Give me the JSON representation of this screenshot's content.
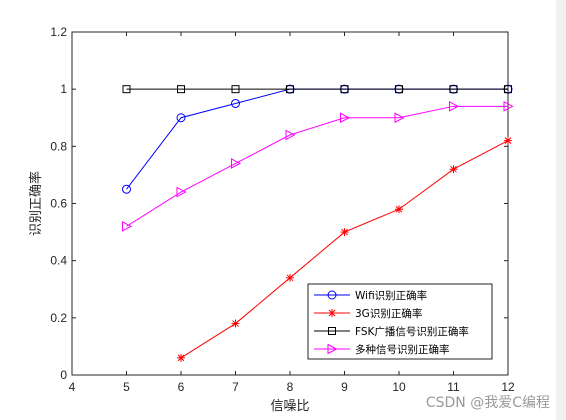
{
  "chart_data": {
    "type": "line",
    "xlabel": "信噪比",
    "ylabel": "识别正确率",
    "xlim": [
      4,
      12
    ],
    "ylim": [
      0,
      1.2
    ],
    "x_ticks": [
      "4",
      "5",
      "6",
      "7",
      "8",
      "9",
      "10",
      "11",
      "12"
    ],
    "y_ticks": [
      "0",
      "0.2",
      "0.4",
      "0.6",
      "0.8",
      "1",
      "1.2"
    ],
    "grid": false,
    "legend_position": "bottom-right",
    "series": [
      {
        "name": "Wifi识别正确率",
        "color": "#0000ff",
        "marker": "circle",
        "x": [
          5,
          6,
          7,
          8,
          9,
          10,
          11,
          12
        ],
        "y": [
          0.65,
          0.9,
          0.95,
          1,
          1,
          1,
          1,
          1
        ]
      },
      {
        "name": "3G识别正确率",
        "color": "#ff0000",
        "marker": "asterisk",
        "x": [
          6,
          7,
          8,
          9,
          10,
          11,
          12
        ],
        "y": [
          0.06,
          0.18,
          0.34,
          0.5,
          0.58,
          0.72,
          0.82
        ]
      },
      {
        "name": "FSK广播信号识别正确率",
        "color": "#000000",
        "marker": "square",
        "x": [
          5,
          6,
          7,
          8,
          9,
          10,
          11,
          12
        ],
        "y": [
          1,
          1,
          1,
          1,
          1,
          1,
          1,
          1
        ]
      },
      {
        "name": "多种信号识别正确率",
        "color": "#ff00ff",
        "marker": "triangle-right",
        "x": [
          5,
          6,
          7,
          8,
          9,
          10,
          11,
          12
        ],
        "y": [
          0.52,
          0.64,
          0.74,
          0.84,
          0.9,
          0.9,
          0.94,
          0.94
        ]
      }
    ]
  },
  "watermark": "CSDN @我爱C编程"
}
